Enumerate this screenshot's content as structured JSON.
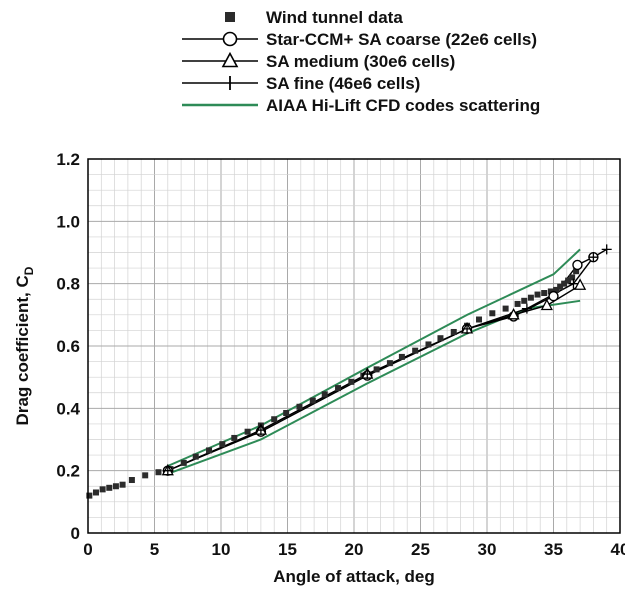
{
  "chart_data": {
    "type": "line",
    "xlabel": "Angle of attack, deg",
    "ylabel_main": "Drag coefficient, C",
    "ylabel_sub": "D",
    "xlim": [
      0,
      40
    ],
    "ylim": [
      0,
      1.2
    ],
    "x_ticks": [
      "0",
      "5",
      "10",
      "15",
      "20",
      "25",
      "30",
      "35",
      "40"
    ],
    "y_ticks": [
      "0",
      "0.2",
      "0.4",
      "0.6",
      "0.8",
      "1.0",
      "1.2"
    ],
    "grid": true,
    "legend_position": "top",
    "series": [
      {
        "name": "Wind tunnel data",
        "style": "marker-square",
        "color": "#2b2b2b",
        "x": [
          0.1,
          0.6,
          1.1,
          1.6,
          2.1,
          2.6,
          3.3,
          4.3,
          5.3,
          6.2,
          7.2,
          8.1,
          9.1,
          10.1,
          11.0,
          12.0,
          13.0,
          14.0,
          14.9,
          15.9,
          16.9,
          17.8,
          18.8,
          19.8,
          20.7,
          21.7,
          22.7,
          23.6,
          24.6,
          25.6,
          26.5,
          27.5,
          28.5,
          29.4,
          30.4,
          31.4,
          32.3,
          32.8,
          33.3,
          33.8,
          34.3,
          34.8,
          35.2,
          35.5,
          35.8,
          36.1,
          36.4,
          36.7
        ],
        "y": [
          0.12,
          0.13,
          0.14,
          0.145,
          0.15,
          0.155,
          0.17,
          0.185,
          0.195,
          0.205,
          0.225,
          0.245,
          0.265,
          0.285,
          0.305,
          0.325,
          0.345,
          0.365,
          0.385,
          0.405,
          0.425,
          0.445,
          0.465,
          0.485,
          0.505,
          0.525,
          0.545,
          0.565,
          0.585,
          0.605,
          0.625,
          0.645,
          0.665,
          0.685,
          0.705,
          0.72,
          0.735,
          0.745,
          0.755,
          0.765,
          0.77,
          0.775,
          0.78,
          0.79,
          0.8,
          0.81,
          0.82,
          0.84
        ]
      },
      {
        "name": "Star-CCM+ SA coarse (22e6 cells)",
        "style": "line-circle",
        "color": "#000000",
        "x": [
          6.0,
          13.0,
          21.0,
          28.5,
          32.0,
          35.0,
          36.8,
          38.0
        ],
        "y": [
          0.2,
          0.325,
          0.505,
          0.655,
          0.695,
          0.76,
          0.86,
          0.885
        ]
      },
      {
        "name": "SA medium (30e6 cells)",
        "style": "line-triangle",
        "color": "#000000",
        "x": [
          6.0,
          13.0,
          21.0,
          28.5,
          32.0,
          34.5,
          37.0
        ],
        "y": [
          0.2,
          0.33,
          0.51,
          0.655,
          0.7,
          0.73,
          0.795
        ]
      },
      {
        "name": "SA fine (46e6 cells)",
        "style": "line-plus",
        "color": "#000000",
        "x": [
          6.0,
          13.0,
          21.0,
          28.5,
          33.0,
          36.5,
          38.0,
          39.0
        ],
        "y": [
          0.2,
          0.33,
          0.51,
          0.655,
          0.72,
          0.8,
          0.885,
          0.91
        ]
      },
      {
        "name": "AIAA Hi-Lift CFD codes scattering",
        "style": "band",
        "color": "#2e8b57",
        "upper": {
          "x": [
            6.0,
            13.0,
            21.0,
            28.5,
            35.0,
            37.0
          ],
          "y": [
            0.215,
            0.345,
            0.53,
            0.7,
            0.83,
            0.91
          ]
        },
        "lower": {
          "x": [
            6.0,
            13.0,
            21.0,
            28.5,
            33.0,
            37.0
          ],
          "y": [
            0.19,
            0.3,
            0.48,
            0.64,
            0.72,
            0.745
          ]
        }
      }
    ]
  }
}
